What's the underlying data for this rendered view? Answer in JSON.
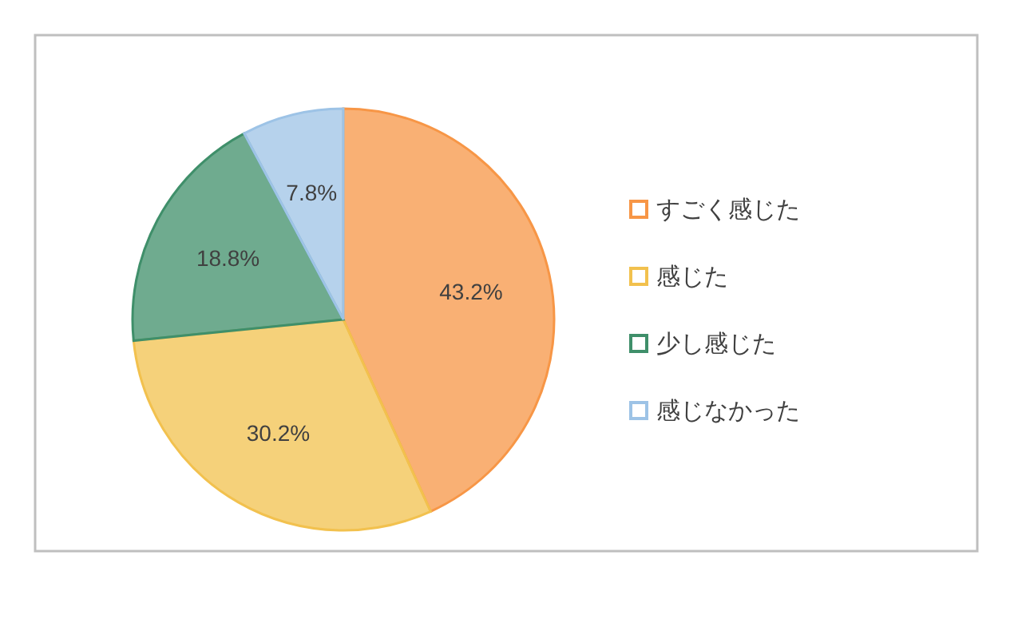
{
  "chart_data": {
    "type": "pie",
    "categories": [
      "すごく感じた",
      "感じた",
      "少し感じた",
      "感じなかった"
    ],
    "values": [
      43.2,
      30.2,
      18.8,
      7.8
    ],
    "value_labels": [
      "43.2%",
      "30.2%",
      "18.8%",
      "7.8%"
    ],
    "colors": [
      "#f79646",
      "#f2c14e",
      "#3f8f6a",
      "#9dc3e6"
    ],
    "legend": "right"
  }
}
